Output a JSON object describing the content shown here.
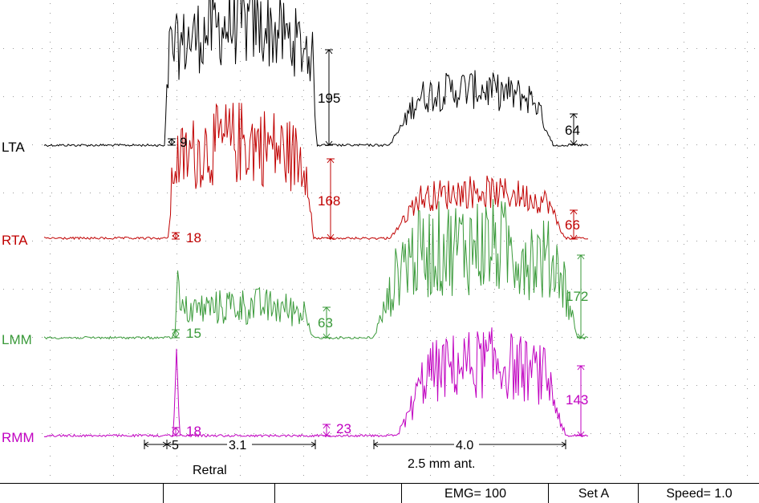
{
  "chart_data": {
    "type": "line",
    "title": "",
    "grid": "dotted",
    "series": [
      {
        "name": "LTA",
        "color": "#000000",
        "amplitudes": [
          {
            "segment": "Retral rest",
            "value": "9"
          },
          {
            "segment": "Retral contraction",
            "value": "195"
          },
          {
            "segment": "2.5 mm ant. contraction",
            "value": "64"
          }
        ]
      },
      {
        "name": "RTA",
        "color": "#c00000",
        "amplitudes": [
          {
            "segment": "Retral rest",
            "value": "18"
          },
          {
            "segment": "Retral contraction",
            "value": "168"
          },
          {
            "segment": "2.5 mm ant. contraction",
            "value": "66"
          }
        ]
      },
      {
        "name": "LMM",
        "color": "#3a9a3a",
        "amplitudes": [
          {
            "segment": "Retral rest",
            "value": "15"
          },
          {
            "segment": "Retral contraction",
            "value": "63"
          },
          {
            "segment": "2.5 mm ant. contraction",
            "value": "172"
          }
        ]
      },
      {
        "name": "RMM",
        "color": "#c000c0",
        "amplitudes": [
          {
            "segment": "Retral rest",
            "value": "18"
          },
          {
            "segment": "Retral contraction",
            "value": "23"
          },
          {
            "segment": "2.5 mm ant. contraction",
            "value": "143"
          }
        ]
      }
    ],
    "time_markers": [
      {
        "value": "5",
        "segment": "Retral"
      },
      {
        "value": "3.1",
        "segment": "Retral"
      },
      {
        "value": "4.0",
        "segment": "2.5 mm ant."
      }
    ],
    "segment_labels": [
      "Retral",
      "2.5 mm ant."
    ]
  },
  "statusbar": {
    "emg": "EMG= 100",
    "set": "Set A",
    "speed": "Speed= 1.0"
  }
}
